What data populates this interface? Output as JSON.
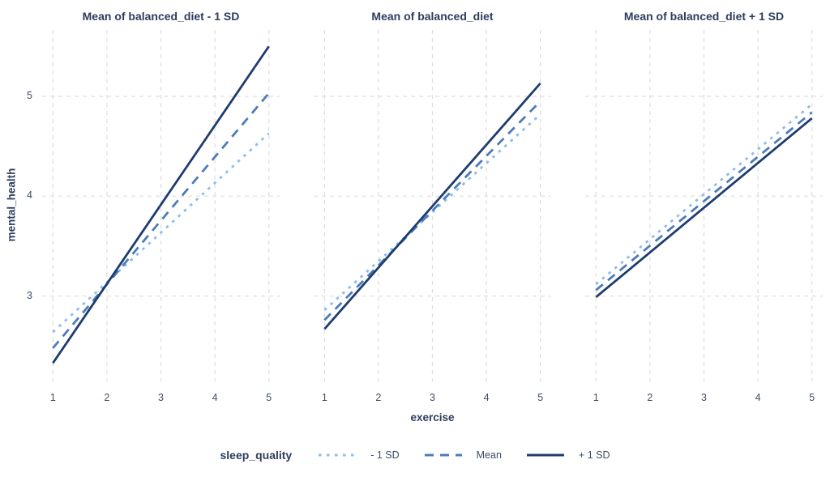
{
  "figure": {
    "background": "#ffffff"
  },
  "colors": {
    "series_minus1sd": "#8dbcec",
    "series_mean": "#4d7cb8",
    "series_plus1sd": "#1e3c6e",
    "gridline": "#dfdfdf",
    "title_text": "#2c3d5c",
    "tick_text": "#3f4e63"
  },
  "chart_data": {
    "type": "line",
    "xlabel": "exercise",
    "ylabel": "mental_health",
    "x_ticks": [
      1,
      2,
      3,
      4,
      5
    ],
    "y_ticks": [
      3,
      4,
      5
    ],
    "xlim": [
      0.8,
      5.2
    ],
    "ylim": [
      2.146,
      5.664
    ],
    "grid": "dashed",
    "legend_title": "sleep_quality",
    "legend_position": "bottom",
    "legend": [
      {
        "label": "- 1 SD",
        "color": "#8dbcec",
        "style": "dotted"
      },
      {
        "label": "Mean",
        "color": "#4d7cb8",
        "style": "dashed"
      },
      {
        "label": "+ 1 SD",
        "color": "#1e3c6e",
        "style": "solid"
      }
    ],
    "facets": [
      {
        "title": "Mean of balanced_diet - 1 SD",
        "series": [
          {
            "name": "- 1 SD",
            "x": [
              1,
              5
            ],
            "y": [
              2.64,
              4.63
            ]
          },
          {
            "name": "Mean",
            "x": [
              1,
              5
            ],
            "y": [
              2.48,
              5.03
            ]
          },
          {
            "name": "+ 1 SD",
            "x": [
              1,
              5
            ],
            "y": [
              2.33,
              5.5
            ]
          }
        ]
      },
      {
        "title": "Mean of balanced_diet",
        "series": [
          {
            "name": "- 1 SD",
            "x": [
              1,
              5
            ],
            "y": [
              2.86,
              4.82
            ]
          },
          {
            "name": "Mean",
            "x": [
              1,
              5
            ],
            "y": [
              2.76,
              4.95
            ]
          },
          {
            "name": "+ 1 SD",
            "x": [
              1,
              5
            ],
            "y": [
              2.67,
              5.13
            ]
          }
        ]
      },
      {
        "title": "Mean of balanced_diet + 1 SD",
        "series": [
          {
            "name": "- 1 SD",
            "x": [
              1,
              5
            ],
            "y": [
              3.12,
              4.92
            ]
          },
          {
            "name": "Mean",
            "x": [
              1,
              5
            ],
            "y": [
              3.06,
              4.84
            ]
          },
          {
            "name": "+ 1 SD",
            "x": [
              1,
              5
            ],
            "y": [
              2.99,
              4.78
            ]
          }
        ]
      }
    ]
  }
}
